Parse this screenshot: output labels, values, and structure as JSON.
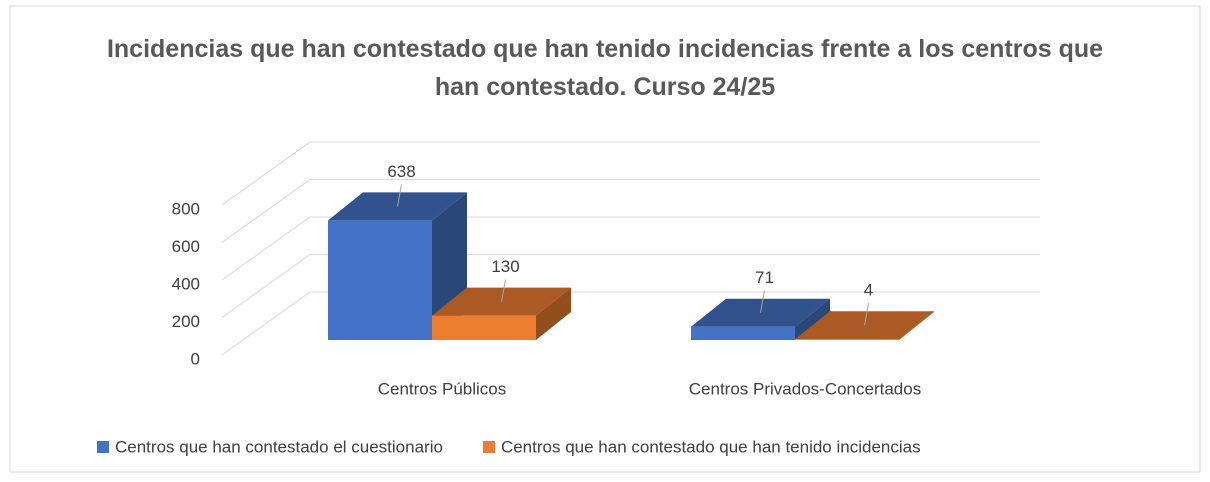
{
  "chart_data": {
    "type": "bar3d",
    "title": "Incidencias que han contestado que han tenido incidencias frente a los centros que han contestado. Curso 24/25",
    "categories": [
      "Centros Públicos",
      "Centros Privados-Concertados"
    ],
    "series": [
      {
        "name": "Centros que han contestado el cuestionario",
        "color": "#4472c4",
        "values": [
          638,
          71
        ]
      },
      {
        "name": "Centros que han contestado que han tenido incidencias",
        "color": "#ed7d31",
        "values": [
          130,
          4
        ]
      }
    ],
    "ylim": [
      0,
      800
    ],
    "yticks": [
      0,
      200,
      400,
      600,
      800
    ],
    "grid": true,
    "legend": "bottom"
  }
}
